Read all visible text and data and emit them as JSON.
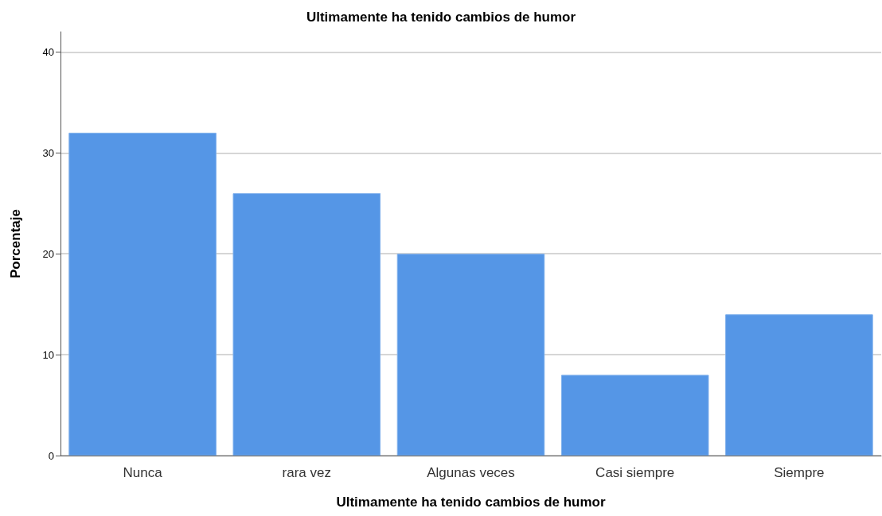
{
  "chart_data": {
    "type": "bar",
    "title": "Ultimamente ha tenido cambios de humor",
    "xlabel": "Ultimamente ha tenido cambios de humor",
    "ylabel": "Porcentaje",
    "categories": [
      "Nunca",
      "rara vez",
      "Algunas veces",
      "Casi siempre",
      "Siempre"
    ],
    "values": [
      32,
      26,
      20,
      8,
      14
    ],
    "color": "#5596e6",
    "ylim": [
      0,
      42
    ],
    "yticks": [
      0,
      10,
      20,
      30,
      40
    ],
    "grid": "y"
  }
}
